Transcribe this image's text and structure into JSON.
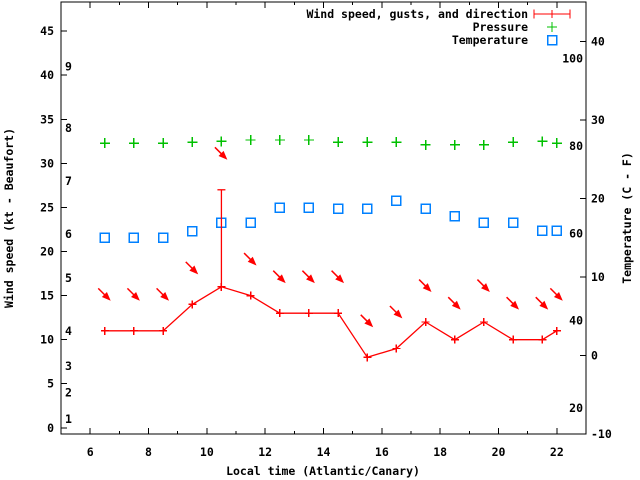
{
  "legend": {
    "items": [
      {
        "label": "Wind speed, gusts, and direction",
        "color": "#ff0000",
        "sample": "errorbar-line-plus"
      },
      {
        "label": "Pressure",
        "color": "#00c000",
        "sample": "plus"
      },
      {
        "label": "Temperature",
        "color": "#0080ff",
        "sample": "open-square"
      }
    ]
  },
  "axes": {
    "x": {
      "label": "Local time (Atlantic/Canary)",
      "range_hours": [
        5,
        23
      ],
      "major_ticks": [
        6,
        8,
        10,
        12,
        14,
        16,
        18,
        20,
        22
      ],
      "minor_ticks": [
        7,
        9,
        11,
        13,
        15,
        17,
        19,
        21
      ]
    },
    "y_left": {
      "label": "Wind speed (kt - Beaufort)",
      "unit": "kt",
      "range": [
        -0.7,
        48.3
      ],
      "ticks": [
        0,
        5,
        10,
        15,
        20,
        25,
        30,
        35,
        40,
        45
      ],
      "beaufort_scale_labels": [
        {
          "label": "1",
          "at_kt": 1
        },
        {
          "label": "2",
          "at_kt": 4
        },
        {
          "label": "3",
          "at_kt": 7
        },
        {
          "label": "4",
          "at_kt": 11
        },
        {
          "label": "5",
          "at_kt": 17
        },
        {
          "label": "6",
          "at_kt": 22
        },
        {
          "label": "7",
          "at_kt": 28
        },
        {
          "label": "8",
          "at_kt": 34
        },
        {
          "label": "9",
          "at_kt": 41
        }
      ]
    },
    "y_right": {
      "label": "Temperature (C - F)",
      "unit": "C",
      "range": [
        -10,
        45
      ],
      "ticks": [
        -10,
        0,
        10,
        20,
        30,
        40
      ],
      "fahrenheit_labels": [
        20,
        40,
        60,
        80,
        100
      ]
    }
  },
  "chart_data": {
    "type": "line",
    "x_hours": [
      6.5,
      7.5,
      8.5,
      9.5,
      10.5,
      11.5,
      12.5,
      13.5,
      14.5,
      15.5,
      16.5,
      17.5,
      18.5,
      19.5,
      20.5,
      21.5,
      22.0
    ],
    "series": [
      {
        "name": "Wind speed",
        "axis": "left",
        "color": "#ff0000",
        "marker": "plus",
        "line": true,
        "values_kt": [
          11,
          11,
          11,
          14,
          16,
          15,
          13,
          13,
          13,
          8,
          9,
          12,
          10,
          12,
          10,
          10,
          11
        ]
      },
      {
        "name": "Pressure",
        "axis": "left",
        "color": "#00c000",
        "marker": "plus",
        "line": false,
        "axis_shown": false,
        "values_left_axis_units": [
          32.3,
          32.3,
          32.3,
          32.4,
          32.5,
          32.65,
          32.65,
          32.65,
          32.4,
          32.4,
          32.4,
          32.1,
          32.1,
          32.1,
          32.4,
          32.5,
          32.3
        ]
      },
      {
        "name": "Temperature",
        "axis": "right",
        "color": "#0080ff",
        "marker": "open-square",
        "line": false,
        "values_c": [
          15.0,
          15.0,
          15.0,
          15.8,
          16.9,
          16.9,
          18.8,
          18.8,
          18.7,
          18.7,
          19.7,
          18.7,
          17.7,
          16.9,
          16.9,
          15.9,
          15.9
        ]
      }
    ],
    "gusts": [
      {
        "x_hour": 10.5,
        "wind_kt": 16,
        "gust_kt": 27
      }
    ],
    "wind_direction_arrows": {
      "per_point": true,
      "direction": "down-right (SE), wind from NW"
    }
  }
}
